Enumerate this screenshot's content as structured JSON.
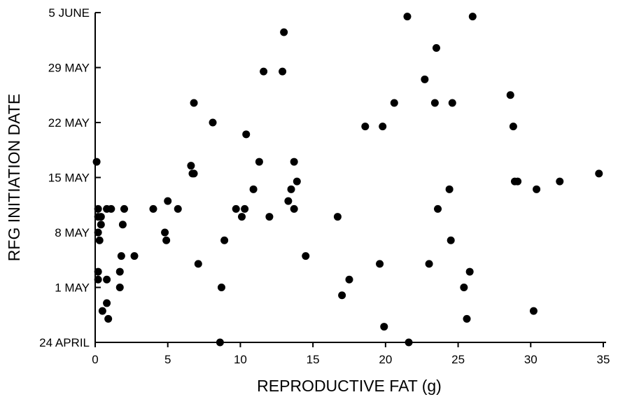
{
  "chart_data": {
    "type": "scatter",
    "xlabel": "REPRODUCTIVE FAT (g)",
    "ylabel": "RFG INITIATION DATE",
    "xlim": [
      0,
      35
    ],
    "ylim": [
      0,
      42
    ],
    "x_ticks": [
      0,
      5,
      10,
      15,
      20,
      25,
      30,
      35
    ],
    "y_ticks": [
      {
        "value": 0,
        "label": "24 APRIL"
      },
      {
        "value": 7,
        "label": "1 MAY"
      },
      {
        "value": 14,
        "label": "8 MAY"
      },
      {
        "value": 21,
        "label": "15 MAY"
      },
      {
        "value": 28,
        "label": "22 MAY"
      },
      {
        "value": 35,
        "label": "29 MAY"
      },
      {
        "value": 42,
        "label": "5 JUNE"
      }
    ],
    "grid": false,
    "marker_color": "#000000",
    "points": [
      [
        0.1,
        23
      ],
      [
        0.2,
        17
      ],
      [
        0.2,
        16
      ],
      [
        0.2,
        14
      ],
      [
        0.3,
        13
      ],
      [
        0.2,
        9
      ],
      [
        0.2,
        8
      ],
      [
        0.4,
        16
      ],
      [
        0.4,
        15
      ],
      [
        0.5,
        4
      ],
      [
        0.8,
        17
      ],
      [
        0.8,
        8
      ],
      [
        0.8,
        5
      ],
      [
        0.9,
        3
      ],
      [
        1.1,
        17
      ],
      [
        1.7,
        7
      ],
      [
        1.7,
        9
      ],
      [
        1.8,
        11
      ],
      [
        1.9,
        15
      ],
      [
        2.0,
        17
      ],
      [
        2.7,
        11
      ],
      [
        4.0,
        17
      ],
      [
        4.8,
        14
      ],
      [
        4.9,
        13
      ],
      [
        5.0,
        18
      ],
      [
        5.7,
        17
      ],
      [
        6.6,
        22.5
      ],
      [
        6.7,
        21.5
      ],
      [
        6.8,
        21.5
      ],
      [
        6.8,
        30.5
      ],
      [
        7.1,
        10
      ],
      [
        8.1,
        28
      ],
      [
        8.7,
        7
      ],
      [
        8.9,
        13
      ],
      [
        8.6,
        0
      ],
      [
        9.7,
        17
      ],
      [
        10.1,
        16
      ],
      [
        10.3,
        17
      ],
      [
        10.4,
        26.5
      ],
      [
        10.9,
        19.5
      ],
      [
        11.3,
        23
      ],
      [
        11.6,
        34.5
      ],
      [
        12.0,
        16
      ],
      [
        12.9,
        34.5
      ],
      [
        13.0,
        39.5
      ],
      [
        13.3,
        18
      ],
      [
        13.5,
        19.5
      ],
      [
        13.7,
        17
      ],
      [
        13.7,
        23
      ],
      [
        13.9,
        20.5
      ],
      [
        14.5,
        11
      ],
      [
        16.7,
        16
      ],
      [
        17.0,
        6
      ],
      [
        17.5,
        8
      ],
      [
        18.6,
        27.5
      ],
      [
        19.6,
        10
      ],
      [
        19.8,
        27.5
      ],
      [
        19.9,
        2
      ],
      [
        20.6,
        30.5
      ],
      [
        21.5,
        41.5
      ],
      [
        21.6,
        0
      ],
      [
        22.7,
        33.5
      ],
      [
        23.0,
        10
      ],
      [
        23.4,
        30.5
      ],
      [
        23.5,
        37.5
      ],
      [
        23.6,
        17
      ],
      [
        24.4,
        19.5
      ],
      [
        24.5,
        13
      ],
      [
        24.6,
        30.5
      ],
      [
        25.4,
        7
      ],
      [
        25.6,
        3
      ],
      [
        25.8,
        9
      ],
      [
        26.0,
        41.5
      ],
      [
        28.6,
        31.5
      ],
      [
        28.8,
        27.5
      ],
      [
        28.9,
        20.5
      ],
      [
        29.1,
        20.5
      ],
      [
        30.2,
        4
      ],
      [
        30.4,
        19.5
      ],
      [
        32.0,
        20.5
      ],
      [
        34.7,
        21.5
      ]
    ]
  }
}
